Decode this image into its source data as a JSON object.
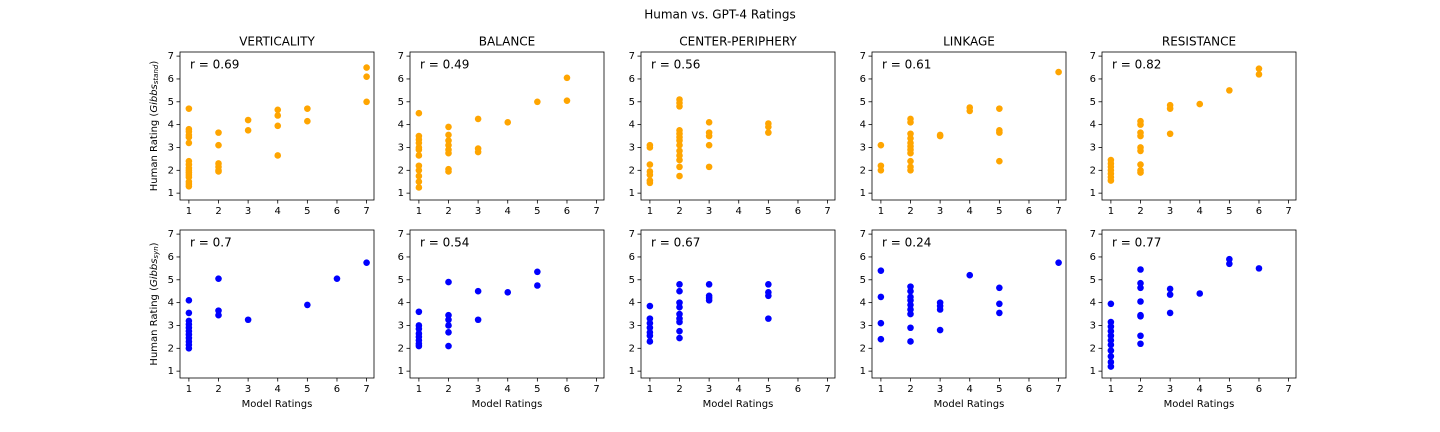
{
  "title": "Human vs. GPT-4 Ratings",
  "chart_data": [
    {
      "type": "scatter",
      "title": "VERTICALITY",
      "annotation": "r = 0.69",
      "color": "#ffa500",
      "ylabel": [
        "Human Rating (",
        "Gibbs",
        "stand",
        ")"
      ],
      "x": [
        1,
        1,
        1,
        1,
        1,
        1,
        1,
        1,
        1,
        1,
        1,
        1,
        1,
        1,
        1,
        1,
        2,
        2,
        2,
        2,
        2,
        2,
        3,
        3,
        4,
        4,
        4,
        4,
        5,
        5,
        7,
        7,
        7
      ],
      "y": [
        4.7,
        3.8,
        3.7,
        3.55,
        3.45,
        3.2,
        2.4,
        2.25,
        2.1,
        2.0,
        1.9,
        1.8,
        1.7,
        1.5,
        1.4,
        1.3,
        3.65,
        3.1,
        2.3,
        2.15,
        2.0,
        1.95,
        4.2,
        3.75,
        4.65,
        4.4,
        3.95,
        2.65,
        4.7,
        4.15,
        6.5,
        6.1,
        5.0
      ],
      "xlim": [
        0.7,
        7.25
      ],
      "ylim": [
        0.7,
        7.18
      ],
      "xticks": [
        1,
        2,
        3,
        4,
        5,
        6,
        7
      ],
      "yticks": [
        1,
        2,
        3,
        4,
        5,
        6,
        7
      ]
    },
    {
      "type": "scatter",
      "title": "BALANCE",
      "annotation": "r = 0.49",
      "color": "#ffa500",
      "x": [
        1,
        1,
        1,
        1,
        1,
        1,
        1,
        1,
        1,
        1,
        1,
        1,
        2,
        2,
        2,
        2,
        2,
        2,
        2,
        2,
        3,
        3,
        3,
        4,
        5,
        6,
        6
      ],
      "y": [
        4.5,
        3.5,
        3.35,
        3.2,
        3.0,
        2.9,
        2.65,
        2.2,
        2.0,
        1.75,
        1.5,
        1.25,
        3.9,
        3.55,
        3.3,
        3.1,
        2.9,
        2.75,
        2.05,
        1.95,
        4.25,
        2.95,
        2.8,
        4.1,
        5.0,
        6.05,
        5.05
      ],
      "xlim": [
        0.7,
        7.25
      ],
      "ylim": [
        0.7,
        7.18
      ],
      "xticks": [
        1,
        2,
        3,
        4,
        5,
        6,
        7
      ],
      "yticks": [
        1,
        2,
        3,
        4,
        5,
        6,
        7
      ]
    },
    {
      "type": "scatter",
      "title": "CENTER-PERIPHERY",
      "annotation": "r = 0.56",
      "color": "#ffa500",
      "x": [
        1,
        1,
        1,
        1,
        1,
        1,
        1,
        2,
        2,
        2,
        2,
        2,
        2,
        2,
        2,
        2,
        2,
        2,
        2,
        2,
        3,
        3,
        3,
        3,
        3,
        5,
        5,
        5
      ],
      "y": [
        3.1,
        3.0,
        2.25,
        1.95,
        1.8,
        1.55,
        1.45,
        5.1,
        4.95,
        4.8,
        3.75,
        3.6,
        3.45,
        3.3,
        3.1,
        2.85,
        2.65,
        2.45,
        2.15,
        1.75,
        4.1,
        3.65,
        3.5,
        3.1,
        2.15,
        4.05,
        3.9,
        3.65
      ],
      "xlim": [
        0.7,
        7.25
      ],
      "ylim": [
        0.7,
        7.18
      ],
      "xticks": [
        1,
        2,
        3,
        4,
        5,
        6,
        7
      ],
      "yticks": [
        1,
        2,
        3,
        4,
        5,
        6,
        7
      ]
    },
    {
      "type": "scatter",
      "title": "LINKAGE",
      "annotation": "r = 0.61",
      "color": "#ffa500",
      "x": [
        1,
        1,
        1,
        2,
        2,
        2,
        2,
        2,
        2,
        2,
        2,
        2,
        2,
        2,
        3,
        3,
        4,
        4,
        5,
        5,
        5,
        5,
        7
      ],
      "y": [
        3.1,
        2.2,
        2.0,
        4.25,
        4.1,
        3.6,
        3.4,
        3.2,
        3.05,
        2.9,
        2.75,
        2.4,
        2.15,
        2.0,
        3.55,
        3.5,
        4.75,
        4.6,
        4.7,
        3.75,
        3.65,
        2.4,
        6.3
      ],
      "xlim": [
        0.7,
        7.25
      ],
      "ylim": [
        0.7,
        7.18
      ],
      "xticks": [
        1,
        2,
        3,
        4,
        5,
        6,
        7
      ],
      "yticks": [
        1,
        2,
        3,
        4,
        5,
        6,
        7
      ]
    },
    {
      "type": "scatter",
      "title": "RESISTANCE",
      "annotation": "r = 0.82",
      "color": "#ffa500",
      "x": [
        1,
        1,
        1,
        1,
        1,
        1,
        1,
        2,
        2,
        2,
        2,
        2,
        2,
        2,
        2,
        2,
        3,
        3,
        3,
        4,
        5,
        6,
        6
      ],
      "y": [
        2.45,
        2.3,
        2.15,
        2.0,
        1.85,
        1.7,
        1.55,
        4.15,
        4.0,
        3.65,
        3.5,
        3.0,
        2.85,
        2.25,
        2.0,
        1.9,
        4.85,
        4.7,
        3.6,
        4.9,
        5.5,
        6.45,
        6.2
      ],
      "xlim": [
        0.7,
        7.25
      ],
      "ylim": [
        0.7,
        7.18
      ],
      "xticks": [
        1,
        2,
        3,
        4,
        5,
        6,
        7
      ],
      "yticks": [
        1,
        2,
        3,
        4,
        5,
        6,
        7
      ]
    },
    {
      "type": "scatter",
      "annotation": "r = 0.7",
      "color": "#0000ff",
      "xlabel": "Model Ratings",
      "ylabel": [
        "Human Rating (",
        "Gibbs",
        "syn",
        ")"
      ],
      "x": [
        1,
        1,
        1,
        1,
        1,
        1,
        1,
        1,
        1,
        1,
        1,
        2,
        2,
        2,
        3,
        5,
        6,
        7
      ],
      "y": [
        4.1,
        3.55,
        3.2,
        3.05,
        2.9,
        2.75,
        2.6,
        2.45,
        2.3,
        2.15,
        2.0,
        5.05,
        3.65,
        3.45,
        3.25,
        3.9,
        5.05,
        5.75
      ],
      "xlim": [
        0.7,
        7.25
      ],
      "ylim": [
        0.7,
        7.18
      ],
      "xticks": [
        1,
        2,
        3,
        4,
        5,
        6,
        7
      ],
      "yticks": [
        1,
        2,
        3,
        4,
        5,
        6,
        7
      ]
    },
    {
      "type": "scatter",
      "annotation": "r = 0.54",
      "color": "#0000ff",
      "xlabel": "Model Ratings",
      "x": [
        1,
        1,
        1,
        1,
        1,
        1,
        1,
        1,
        2,
        2,
        2,
        2,
        2,
        2,
        3,
        3,
        4,
        5,
        5
      ],
      "y": [
        3.6,
        3.0,
        2.85,
        2.65,
        2.5,
        2.35,
        2.2,
        2.1,
        4.9,
        3.45,
        3.25,
        3.0,
        2.7,
        2.1,
        4.5,
        3.25,
        4.45,
        5.35,
        4.75
      ],
      "xlim": [
        0.7,
        7.25
      ],
      "ylim": [
        0.7,
        7.18
      ],
      "xticks": [
        1,
        2,
        3,
        4,
        5,
        6,
        7
      ],
      "yticks": [
        1,
        2,
        3,
        4,
        5,
        6,
        7
      ]
    },
    {
      "type": "scatter",
      "annotation": "r = 0.67",
      "color": "#0000ff",
      "xlabel": "Model Ratings",
      "x": [
        1,
        1,
        1,
        1,
        1,
        1,
        1,
        2,
        2,
        2,
        2,
        2,
        2,
        2,
        2,
        2,
        3,
        3,
        3,
        3,
        5,
        5,
        5,
        5
      ],
      "y": [
        3.85,
        3.3,
        3.1,
        2.9,
        2.7,
        2.55,
        2.3,
        4.8,
        4.5,
        4.0,
        3.8,
        3.5,
        3.3,
        3.15,
        2.75,
        2.45,
        4.8,
        4.3,
        4.2,
        4.1,
        4.8,
        4.45,
        4.3,
        3.3
      ],
      "xlim": [
        0.7,
        7.25
      ],
      "ylim": [
        0.7,
        7.18
      ],
      "xticks": [
        1,
        2,
        3,
        4,
        5,
        6,
        7
      ],
      "yticks": [
        1,
        2,
        3,
        4,
        5,
        6,
        7
      ]
    },
    {
      "type": "scatter",
      "annotation": "r = 0.24",
      "color": "#0000ff",
      "xlabel": "Model Ratings",
      "x": [
        1,
        1,
        1,
        1,
        2,
        2,
        2,
        2,
        2,
        2,
        2,
        2,
        2,
        3,
        3,
        3,
        3,
        4,
        5,
        5,
        5,
        7
      ],
      "y": [
        5.4,
        4.25,
        3.1,
        2.4,
        4.7,
        4.5,
        4.25,
        4.1,
        3.9,
        3.7,
        3.5,
        2.9,
        2.3,
        4.0,
        3.85,
        3.7,
        2.8,
        5.2,
        4.65,
        3.95,
        3.55,
        5.75
      ],
      "xlim": [
        0.7,
        7.25
      ],
      "ylim": [
        0.7,
        7.18
      ],
      "xticks": [
        1,
        2,
        3,
        4,
        5,
        6,
        7
      ],
      "yticks": [
        1,
        2,
        3,
        4,
        5,
        6,
        7
      ]
    },
    {
      "type": "scatter",
      "annotation": "r = 0.77",
      "color": "#0000ff",
      "xlabel": "Model Ratings",
      "x": [
        1,
        1,
        1,
        1,
        1,
        1,
        1,
        1,
        1,
        1,
        1,
        2,
        2,
        2,
        2,
        2,
        2,
        2,
        2,
        3,
        3,
        3,
        4,
        5,
        5,
        6
      ],
      "y": [
        3.95,
        3.15,
        2.95,
        2.75,
        2.55,
        2.35,
        2.15,
        1.9,
        1.65,
        1.4,
        1.2,
        5.45,
        4.85,
        4.65,
        4.05,
        3.45,
        3.4,
        2.55,
        2.2,
        4.6,
        4.35,
        3.55,
        4.4,
        5.9,
        5.7,
        5.5
      ],
      "xlim": [
        0.7,
        7.25
      ],
      "ylim": [
        0.7,
        7.18
      ],
      "xticks": [
        1,
        2,
        3,
        4,
        5,
        6,
        7
      ],
      "yticks": [
        1,
        2,
        3,
        4,
        5,
        6,
        7
      ]
    }
  ]
}
